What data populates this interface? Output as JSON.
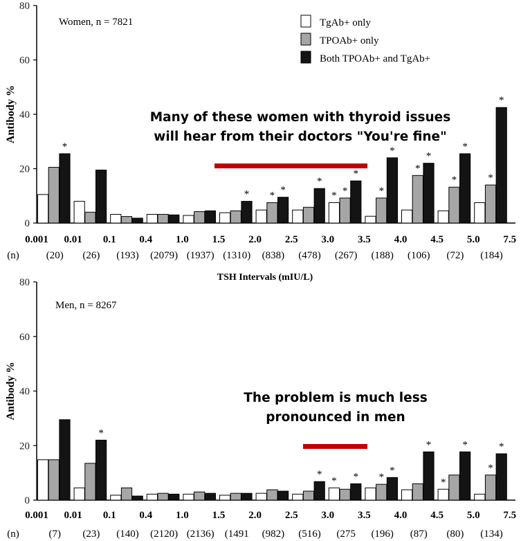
{
  "chart_data": [
    {
      "type": "bar",
      "panel_label": "Women, n = 7821",
      "ylabel": "Antibody %",
      "xlabel": "TSH Intervals (mIU/L)",
      "ylim": [
        0,
        80
      ],
      "yticks": [
        0,
        20,
        40,
        60,
        80
      ],
      "x_edge_labels": [
        "0.001",
        "0.01",
        "0.1",
        "0.4",
        "1.0",
        "1.5",
        "2.0",
        "2.5",
        "3.0",
        "3.5",
        "4.0",
        "4.5",
        "5.0",
        "7.5"
      ],
      "n_prefix": "(n)",
      "n_labels": [
        "(20)",
        "(26)",
        "(193)",
        "(2079)",
        "(1937)",
        "(1310)",
        "(838)",
        "(478)",
        "(267)",
        "(188)",
        "(106)",
        "(72)",
        "(184)"
      ],
      "series": [
        {
          "name": "TgAb+ only",
          "values": [
            10.5,
            8,
            3.2,
            3.2,
            2.8,
            3.8,
            4.8,
            4.8,
            7.5,
            2.5,
            4.8,
            4.5,
            7.5
          ]
        },
        {
          "name": "TPOAb+ only",
          "values": [
            20.5,
            4,
            2.4,
            3.2,
            4.2,
            4.5,
            7.5,
            5.8,
            9.2,
            9.2,
            17.5,
            13.2,
            14
          ]
        },
        {
          "name": "Both TPOAb+ and TgAb+",
          "values": [
            25.5,
            19.5,
            1.8,
            3,
            4.5,
            8,
            9.5,
            12.7,
            15.5,
            24,
            22,
            25.5,
            42.5
          ]
        }
      ],
      "significance": [
        [
          false,
          false,
          true
        ],
        [
          false,
          false,
          false
        ],
        [
          false,
          false,
          false
        ],
        [
          false,
          false,
          false
        ],
        [
          false,
          false,
          false
        ],
        [
          false,
          false,
          true
        ],
        [
          false,
          true,
          true
        ],
        [
          false,
          false,
          true
        ],
        [
          true,
          true,
          true
        ],
        [
          false,
          true,
          true
        ],
        [
          false,
          true,
          true
        ],
        [
          false,
          true,
          true
        ],
        [
          false,
          true,
          true
        ]
      ],
      "star": "*",
      "legend": {
        "placement": "top-right",
        "entries": [
          "TgAb+ only",
          "TPOAb+ only",
          "Both TPOAb+ and TgAb+"
        ]
      },
      "annotation": {
        "lines": [
          "Many of these women with thyroid issues",
          "will hear from their doctors \"You're fine\""
        ],
        "highlight_range": [
          1.5,
          3.5
        ]
      }
    },
    {
      "type": "bar",
      "panel_label": "Men, n = 8267",
      "ylabel": "Antibody %",
      "ylim": [
        0,
        80
      ],
      "yticks": [
        0,
        20,
        40,
        60,
        80
      ],
      "x_edge_labels": [
        "0.001",
        "0.01",
        "0.1",
        "0.4",
        "1.0",
        "1.5",
        "2.0",
        "2.5",
        "3.0",
        "3.5",
        "4.0",
        "4.5",
        "5.0",
        "7.5"
      ],
      "n_prefix": "(n)",
      "n_labels": [
        "(7)",
        "(23)",
        "(140)",
        "(2120)",
        "(2136)",
        "(1491",
        "(982)",
        "(516)",
        "(275",
        "(196)",
        "(87)",
        "(80)",
        "(134)"
      ],
      "series": [
        {
          "name": "TgAb+ only",
          "values": [
            14.8,
            4.5,
            1.8,
            2.2,
            2.2,
            1.8,
            2.5,
            2.2,
            4.5,
            4.5,
            3.8,
            4,
            2.2
          ]
        },
        {
          "name": "TPOAb+ only",
          "values": [
            14.8,
            13.5,
            4.5,
            2.5,
            3,
            2.5,
            3.8,
            3.3,
            4,
            5.8,
            6,
            9.2,
            9.2
          ]
        },
        {
          "name": "Both TPOAb+ and TgAb+",
          "values": [
            29.5,
            22,
            1.5,
            2.2,
            2.5,
            2.5,
            3.3,
            6.8,
            6,
            8.3,
            17.7,
            17.7,
            17
          ]
        }
      ],
      "significance": [
        [
          false,
          false,
          false
        ],
        [
          false,
          false,
          true
        ],
        [
          false,
          false,
          false
        ],
        [
          false,
          false,
          false
        ],
        [
          false,
          false,
          false
        ],
        [
          false,
          false,
          false
        ],
        [
          false,
          false,
          false
        ],
        [
          false,
          false,
          true
        ],
        [
          true,
          false,
          true
        ],
        [
          false,
          true,
          true
        ],
        [
          false,
          false,
          true
        ],
        [
          true,
          false,
          true
        ],
        [
          false,
          true,
          true
        ]
      ],
      "star": "*",
      "annotation": {
        "lines": [
          "The problem is much less",
          "pronounced in men"
        ],
        "highlight_range": [
          2.5,
          3.5
        ]
      }
    }
  ],
  "colors": {
    "tgab": "#ffffff",
    "tpoab": "#a6a6a6",
    "both": "#141414",
    "highlight": "#c00000",
    "axis": "#000000"
  }
}
